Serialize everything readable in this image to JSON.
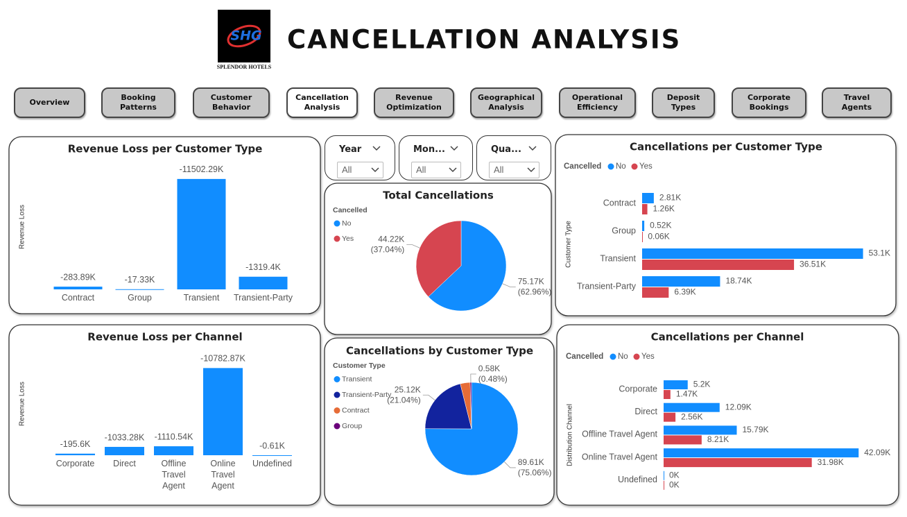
{
  "header": {
    "logo_text": "SHG",
    "logo_caption": "SPLENDOR HOTELS",
    "title": "CANCELLATION ANALYSIS"
  },
  "nav": [
    "Overview",
    "Booking Patterns",
    "Customer Behavior",
    "Cancellation Analysis",
    "Revenue Optimization",
    "Geographical Analysis",
    "Operational Efficiency",
    "Deposit Types",
    "Corporate Bookings",
    "Travel Agents"
  ],
  "slicers": [
    {
      "label": "Year",
      "value": "All"
    },
    {
      "label": "Mon...",
      "value": "All"
    },
    {
      "label": "Qua...",
      "value": "All"
    }
  ],
  "chart_data": [
    {
      "type": "bar",
      "title": "Revenue Loss per Customer Type",
      "y_label": "Revenue Loss",
      "categories": [
        "Contract",
        "Group",
        "Transient",
        "Transient-Party"
      ],
      "values": [
        -283.89,
        -17.33,
        -11502.29,
        -1319.4
      ],
      "value_labels": [
        "-283.89K",
        "-17.33K",
        "-11502.29K",
        "-1319.4K"
      ],
      "color": "#118DFF",
      "ylim": [
        0,
        -12000
      ]
    },
    {
      "type": "bar",
      "title": "Revenue Loss per Channel",
      "y_label": "Revenue Loss",
      "categories": [
        "Corporate",
        "Direct",
        "Offline Travel Agent",
        "Online Travel Agent",
        "Undefined"
      ],
      "values": [
        -195.6,
        -1033.28,
        -1110.54,
        -10782.87,
        -0.61
      ],
      "value_labels": [
        "-195.6K",
        "-1033.28K",
        "-1110.54K",
        "-10782.87K",
        "-0.61K"
      ],
      "color": "#118DFF",
      "ylim": [
        0,
        -11500
      ]
    },
    {
      "type": "pie",
      "title": "Total Cancellations",
      "legend_title": "Cancelled",
      "categories": [
        "No",
        "Yes"
      ],
      "values": [
        75.17,
        44.22
      ],
      "value_labels": [
        "75.17K",
        "44.22K"
      ],
      "percent_labels": [
        "(62.96%)",
        "(37.04%)"
      ],
      "colors": [
        "#118DFF",
        "#D64550"
      ]
    },
    {
      "type": "pie",
      "title": "Cancellations by Customer Type",
      "legend_title": "Customer Type",
      "categories": [
        "Transient",
        "Transient-Party",
        "Contract",
        "Group"
      ],
      "values": [
        89.61,
        25.12,
        4.08,
        0.58
      ],
      "value_labels": [
        "89.61K",
        "25.12K",
        null,
        "0.58K"
      ],
      "percent_labels": [
        "(75.06%)",
        "(21.04%)",
        null,
        "(0.48%)"
      ],
      "colors": [
        "#118DFF",
        "#12239E",
        "#E66C37",
        "#6B007B"
      ]
    },
    {
      "type": "hbar",
      "title": "Cancellations per Customer Type",
      "legend_title": "Cancelled",
      "y_label": "Customer Type",
      "categories": [
        "Contract",
        "Group",
        "Transient",
        "Transient-Party"
      ],
      "series": [
        {
          "name": "No",
          "color": "#118DFF",
          "values": [
            2.81,
            0.52,
            53.1,
            18.74
          ],
          "value_labels": [
            "2.81K",
            "0.52K",
            "53.1K",
            "18.74K"
          ]
        },
        {
          "name": "Yes",
          "color": "#D64550",
          "values": [
            1.26,
            0.06,
            36.51,
            6.39
          ],
          "value_labels": [
            "1.26K",
            "0.06K",
            "36.51K",
            "6.39K"
          ]
        }
      ],
      "xlim": [
        0,
        55
      ]
    },
    {
      "type": "hbar",
      "title": "Cancellations per Channel",
      "legend_title": "Cancelled",
      "y_label": "Distribution Channel",
      "categories": [
        "Corporate",
        "Direct",
        "Offline Travel Agent",
        "Online Travel Agent",
        "Undefined"
      ],
      "series": [
        {
          "name": "No",
          "color": "#118DFF",
          "values": [
            5.2,
            12.09,
            15.79,
            42.09,
            0
          ],
          "value_labels": [
            "5.2K",
            "12.09K",
            "15.79K",
            "42.09K",
            "0K"
          ]
        },
        {
          "name": "Yes",
          "color": "#D64550",
          "values": [
            1.47,
            2.56,
            8.21,
            31.98,
            0
          ],
          "value_labels": [
            "1.47K",
            "2.56K",
            "8.21K",
            "31.98K",
            "0K"
          ]
        }
      ],
      "xlim": [
        0,
        44
      ]
    }
  ]
}
